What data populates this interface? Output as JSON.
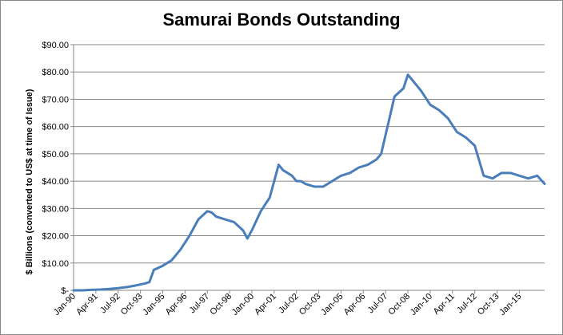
{
  "chart_data": {
    "type": "line",
    "title": "Samurai Bonds Outstanding",
    "xlabel": "",
    "ylabel": "$ Billions (converted to US$ at time of Issue)",
    "ylim": [
      0,
      90
    ],
    "y_ticks": [
      {
        "value": 0,
        "label": "$-"
      },
      {
        "value": 10,
        "label": "$10.00"
      },
      {
        "value": 20,
        "label": "$20.00"
      },
      {
        "value": 30,
        "label": "$30.00"
      },
      {
        "value": 40,
        "label": "$40.00"
      },
      {
        "value": 50,
        "label": "$50.00"
      },
      {
        "value": 60,
        "label": "$60.00"
      },
      {
        "value": 70,
        "label": "$70.00"
      },
      {
        "value": 80,
        "label": "$80.00"
      },
      {
        "value": 90,
        "label": "$90.00"
      }
    ],
    "x_range": [
      "Jan-90",
      "Jun-16"
    ],
    "x_ticks": [
      "Jan-90",
      "Apr-91",
      "Jul-92",
      "Oct-93",
      "Jan-95",
      "Apr-96",
      "Jul-97",
      "Oct-98",
      "Jan-00",
      "Apr-01",
      "Jul-02",
      "Oct-03",
      "Jan-05",
      "Apr-06",
      "Jul-07",
      "Oct-08",
      "Jan-10",
      "Apr-11",
      "Jul-12",
      "Oct-13",
      "Jan-15"
    ],
    "grid": "horizontal",
    "legend": "none",
    "line_color": "#4a7ebb",
    "series": [
      {
        "x": [
          "Jan-90",
          "Jul-90",
          "Jan-91",
          "Jul-91",
          "Jan-92",
          "Jul-92",
          "Jan-93",
          "Jul-93",
          "Jan-94",
          "Apr-94",
          "Jul-94",
          "Jan-95",
          "Jul-95",
          "Jan-96",
          "Jul-96",
          "Jan-97",
          "Jul-97",
          "Oct-97",
          "Jan-98",
          "Jul-98",
          "Jan-99",
          "Jul-99",
          "Oct-99",
          "Jan-00",
          "Jul-00",
          "Jan-01",
          "Apr-01",
          "Jul-01",
          "Oct-01",
          "Jan-02",
          "Apr-02",
          "Jul-02",
          "Oct-02",
          "Jan-03",
          "Jul-03",
          "Jan-04",
          "Jul-04",
          "Jan-05",
          "Jul-05",
          "Jan-06",
          "Jul-06",
          "Jan-07",
          "Apr-07",
          "Jul-07",
          "Jan-08",
          "Jul-08",
          "Oct-08",
          "Jan-09",
          "Jul-09",
          "Jan-10",
          "Jul-10",
          "Jan-11",
          "Jul-11",
          "Jan-12",
          "Jul-12",
          "Jan-13",
          "Jul-13",
          "Jan-14",
          "Jul-14",
          "Jan-15",
          "Jul-15",
          "Jan-16",
          "Jun-16"
        ],
        "values": [
          0,
          0,
          0.2,
          0.3,
          0.5,
          0.8,
          1.2,
          1.8,
          2.5,
          3,
          7.5,
          9,
          11,
          15,
          20,
          26,
          29,
          28.5,
          27,
          26,
          25,
          22,
          19,
          22,
          29,
          34,
          40,
          46,
          44,
          43,
          42,
          40,
          40,
          39,
          38,
          38,
          40,
          42,
          43,
          45,
          46,
          48,
          50,
          57,
          71,
          74,
          79,
          77,
          73,
          68,
          66,
          63,
          58,
          56,
          53,
          42,
          41,
          43,
          43,
          42,
          41,
          42,
          39
        ]
      }
    ]
  }
}
